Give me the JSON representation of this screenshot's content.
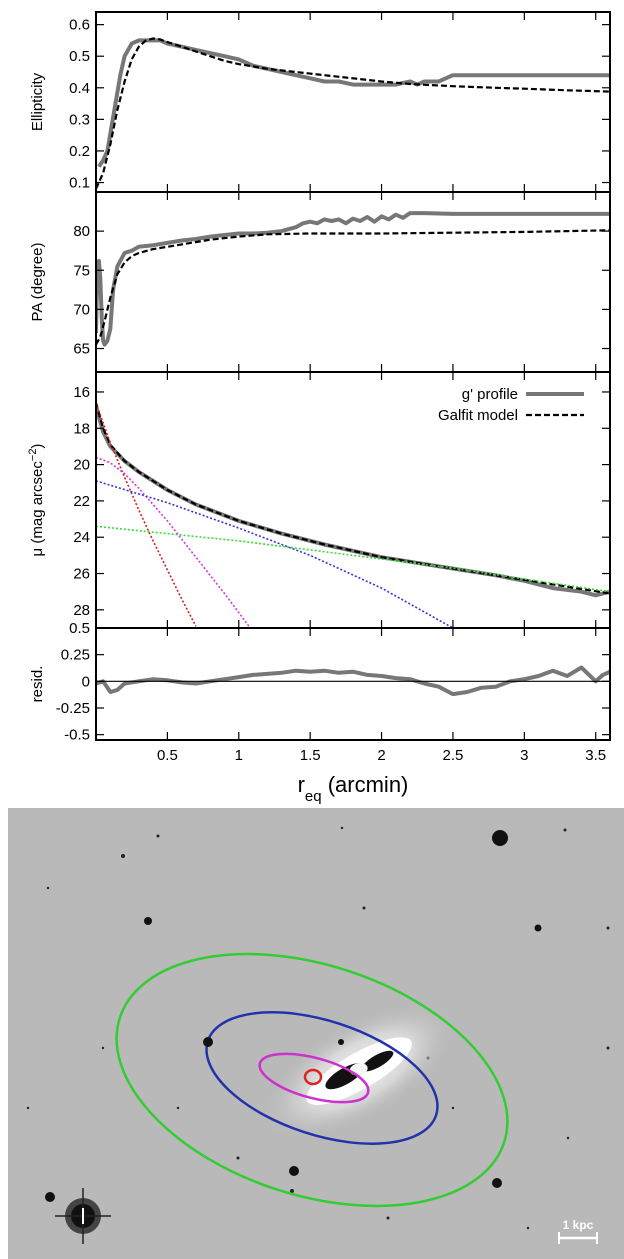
{
  "chart_data": [
    {
      "type": "line",
      "panel": "ellipticity",
      "ylabel": "Ellipticity",
      "xlim": [
        0,
        3.6
      ],
      "ylim": [
        0.07,
        0.64
      ],
      "yticks": [
        "0.1",
        "0.2",
        "0.3",
        "0.4",
        "0.5",
        "0.6"
      ],
      "ytick_values": [
        0.1,
        0.2,
        0.3,
        0.4,
        0.5,
        0.6
      ],
      "series": [
        {
          "name": "g' profile",
          "color": "#777777",
          "style": "solid",
          "x": [
            0.02,
            0.05,
            0.08,
            0.11,
            0.14,
            0.17,
            0.2,
            0.25,
            0.3,
            0.35,
            0.4,
            0.45,
            0.5,
            0.6,
            0.7,
            0.8,
            0.9,
            1.0,
            1.1,
            1.2,
            1.3,
            1.4,
            1.5,
            1.6,
            1.7,
            1.8,
            1.9,
            2.0,
            2.1,
            2.2,
            2.25,
            2.3,
            2.4,
            2.45,
            2.5,
            2.6,
            2.8,
            3.0,
            3.2,
            3.4,
            3.6
          ],
          "y": [
            0.15,
            0.17,
            0.2,
            0.28,
            0.36,
            0.44,
            0.5,
            0.54,
            0.55,
            0.55,
            0.55,
            0.55,
            0.54,
            0.53,
            0.52,
            0.51,
            0.5,
            0.49,
            0.47,
            0.46,
            0.45,
            0.44,
            0.43,
            0.42,
            0.42,
            0.41,
            0.41,
            0.41,
            0.41,
            0.42,
            0.41,
            0.42,
            0.42,
            0.43,
            0.44,
            0.44,
            0.44,
            0.44,
            0.44,
            0.44,
            0.44
          ]
        },
        {
          "name": "Galfit model",
          "color": "#000000",
          "style": "dashed",
          "x": [
            0.0,
            0.05,
            0.1,
            0.15,
            0.2,
            0.25,
            0.3,
            0.35,
            0.4,
            0.45,
            0.5,
            0.6,
            0.7,
            0.8,
            0.9,
            1.0,
            1.2,
            1.4,
            1.6,
            1.8,
            2.0,
            2.2,
            2.5,
            2.8,
            3.0,
            3.3,
            3.6
          ],
          "y": [
            0.08,
            0.13,
            0.22,
            0.33,
            0.42,
            0.49,
            0.53,
            0.55,
            0.556,
            0.553,
            0.545,
            0.53,
            0.515,
            0.5,
            0.485,
            0.475,
            0.46,
            0.45,
            0.44,
            0.43,
            0.42,
            0.412,
            0.405,
            0.4,
            0.397,
            0.392,
            0.388
          ]
        }
      ]
    },
    {
      "type": "line",
      "panel": "position-angle",
      "ylabel": "PA (degree)",
      "xlim": [
        0,
        3.6
      ],
      "ylim": [
        62,
        85
      ],
      "yticks": [
        "65",
        "70",
        "75",
        "80"
      ],
      "ytick_values": [
        65,
        70,
        75,
        80
      ],
      "series": [
        {
          "name": "g' profile",
          "color": "#777777",
          "style": "solid",
          "x": [
            0.0,
            0.01,
            0.02,
            0.03,
            0.04,
            0.05,
            0.06,
            0.08,
            0.1,
            0.12,
            0.15,
            0.2,
            0.25,
            0.3,
            0.4,
            0.5,
            0.6,
            0.7,
            0.8,
            0.9,
            1.0,
            1.1,
            1.2,
            1.3,
            1.4,
            1.45,
            1.5,
            1.55,
            1.6,
            1.65,
            1.7,
            1.75,
            1.8,
            1.85,
            1.9,
            1.95,
            2.0,
            2.05,
            2.1,
            2.15,
            2.2,
            2.3,
            2.5,
            2.8,
            3.1,
            3.4,
            3.6
          ],
          "y": [
            67,
            75.5,
            76.2,
            74.0,
            69,
            66.0,
            65.5,
            66.0,
            67.5,
            72.5,
            75.5,
            77.2,
            77.5,
            78.0,
            78.2,
            78.5,
            78.8,
            79.0,
            79.3,
            79.5,
            79.7,
            79.7,
            79.8,
            80.0,
            80.5,
            81.0,
            81.2,
            81.0,
            81.5,
            81.3,
            81.5,
            81.0,
            81.6,
            81.3,
            81.8,
            81.2,
            81.9,
            81.5,
            82.1,
            81.7,
            82.3,
            82.3,
            82.2,
            82.2,
            82.2,
            82.2,
            82.2
          ]
        },
        {
          "name": "Galfit model",
          "color": "#000000",
          "style": "dashed",
          "x": [
            0.0,
            0.03,
            0.06,
            0.1,
            0.15,
            0.2,
            0.25,
            0.3,
            0.4,
            0.5,
            0.6,
            0.8,
            1.0,
            1.2,
            1.5,
            1.8,
            2.0,
            2.5,
            3.0,
            3.3,
            3.6
          ],
          "y": [
            65.5,
            66.5,
            68.5,
            71.5,
            74.5,
            76.0,
            76.8,
            77.2,
            77.7,
            78.0,
            78.3,
            78.9,
            79.3,
            79.6,
            79.7,
            79.7,
            79.7,
            79.8,
            79.9,
            80.0,
            80.1
          ]
        }
      ]
    },
    {
      "type": "line",
      "panel": "surface-brightness",
      "ylabel": "μ (mag arcsec",
      "ylabel_sup": "−2",
      "ylabel_close": ")",
      "xlim": [
        0,
        3.6
      ],
      "ylim": [
        29.0,
        14.9
      ],
      "y_inverted": true,
      "yticks": [
        "16",
        "18",
        "20",
        "22",
        "24",
        "26",
        "28"
      ],
      "ytick_values": [
        16,
        18,
        20,
        22,
        24,
        26,
        28
      ],
      "legend": {
        "placement": "top-right",
        "entries": [
          {
            "label": "g' profile",
            "series": 0
          },
          {
            "label": "Galfit model",
            "series": 1
          }
        ]
      },
      "series": [
        {
          "name": "g' profile",
          "color": "#777777",
          "style": "solid",
          "x": [
            0.0,
            0.05,
            0.1,
            0.2,
            0.3,
            0.5,
            0.7,
            1.0,
            1.3,
            1.6,
            2.0,
            2.4,
            2.8,
            3.0,
            3.2,
            3.4,
            3.5,
            3.6
          ],
          "y": [
            16.8,
            18.2,
            19.0,
            19.8,
            20.4,
            21.4,
            22.2,
            23.1,
            23.8,
            24.4,
            25.1,
            25.6,
            26.1,
            26.4,
            26.8,
            27.0,
            27.2,
            27.0
          ]
        },
        {
          "name": "Galfit model",
          "color": "#000000",
          "style": "dashed",
          "x": [
            0.0,
            0.05,
            0.1,
            0.2,
            0.3,
            0.5,
            0.7,
            1.0,
            1.3,
            1.6,
            2.0,
            2.4,
            2.8,
            3.2,
            3.6
          ],
          "y": [
            16.6,
            18.0,
            18.9,
            19.8,
            20.4,
            21.4,
            22.2,
            23.1,
            23.8,
            24.4,
            25.1,
            25.6,
            26.1,
            26.6,
            27.1
          ]
        },
        {
          "name": "",
          "color": "#cc2222",
          "style": "dotted",
          "x": [
            0.0,
            0.1,
            0.2,
            0.3,
            0.4,
            0.5,
            0.6,
            0.7
          ],
          "y": [
            16.6,
            18.8,
            20.7,
            22.5,
            24.2,
            25.8,
            27.4,
            28.9
          ]
        },
        {
          "name": "",
          "color": "#dd33dd",
          "style": "dotted",
          "x": [
            0.0,
            0.1,
            0.2,
            0.3,
            0.5,
            0.7,
            0.9,
            1.08
          ],
          "y": [
            19.6,
            19.9,
            20.5,
            21.3,
            23.1,
            25.1,
            27.1,
            29.0
          ]
        },
        {
          "name": "",
          "color": "#3333dd",
          "style": "dotted",
          "x": [
            0.0,
            0.25,
            0.5,
            0.75,
            1.0,
            1.5,
            2.0,
            2.5
          ],
          "y": [
            20.9,
            21.5,
            22.1,
            22.8,
            23.5,
            25.0,
            26.8,
            29.0
          ]
        },
        {
          "name": "",
          "color": "#33dd33",
          "style": "dotted",
          "x": [
            0.0,
            0.5,
            1.0,
            1.5,
            2.0,
            2.5,
            3.0,
            3.6
          ],
          "y": [
            23.4,
            23.8,
            24.2,
            24.7,
            25.2,
            25.7,
            26.3,
            27.0
          ]
        }
      ]
    },
    {
      "type": "line",
      "panel": "residual",
      "ylabel": "resid.",
      "xlabel": "r",
      "xlabel_sub": "eq",
      "xlabel_rest": " (arcmin)",
      "xlim": [
        0,
        3.6
      ],
      "ylim": [
        -0.55,
        0.5
      ],
      "yticks": [
        "-0.5",
        "-0.25",
        "0",
        "0.25",
        "0.5"
      ],
      "ytick_values": [
        -0.5,
        -0.25,
        0,
        0.25,
        0.5
      ],
      "xticks": [
        "0.5",
        "1",
        "1.5",
        "2",
        "2.5",
        "3",
        "3.5"
      ],
      "xtick_values": [
        0.5,
        1,
        1.5,
        2,
        2.5,
        3,
        3.5
      ],
      "series": [
        {
          "name": "g' profile",
          "color": "#777777",
          "style": "solid",
          "x": [
            0.0,
            0.05,
            0.1,
            0.15,
            0.2,
            0.3,
            0.4,
            0.5,
            0.6,
            0.7,
            0.8,
            0.9,
            1.0,
            1.1,
            1.2,
            1.3,
            1.4,
            1.5,
            1.6,
            1.7,
            1.8,
            1.9,
            2.0,
            2.1,
            2.2,
            2.3,
            2.4,
            2.5,
            2.6,
            2.7,
            2.8,
            2.9,
            3.0,
            3.1,
            3.2,
            3.3,
            3.4,
            3.5,
            3.55,
            3.6
          ],
          "y": [
            -0.02,
            0.0,
            -0.1,
            -0.08,
            -0.02,
            0.0,
            0.02,
            0.01,
            -0.01,
            -0.02,
            0.0,
            0.02,
            0.04,
            0.06,
            0.07,
            0.08,
            0.1,
            0.09,
            0.1,
            0.08,
            0.09,
            0.06,
            0.05,
            0.03,
            0.02,
            -0.02,
            -0.05,
            -0.12,
            -0.1,
            -0.06,
            -0.05,
            0.0,
            0.02,
            0.05,
            0.1,
            0.05,
            0.13,
            0.0,
            0.06,
            0.09
          ]
        },
        {
          "name": "",
          "color": "#000000",
          "style": "solid",
          "x": [
            0.0,
            3.6
          ],
          "y": [
            0.0,
            0.0
          ]
        }
      ]
    }
  ],
  "image": {
    "scale_label": "1 kpc",
    "ellipse_colors": [
      "#dd2222",
      "#cc33cc",
      "#2233aa",
      "#33cc33"
    ],
    "background_color": "#b9b9b9"
  }
}
